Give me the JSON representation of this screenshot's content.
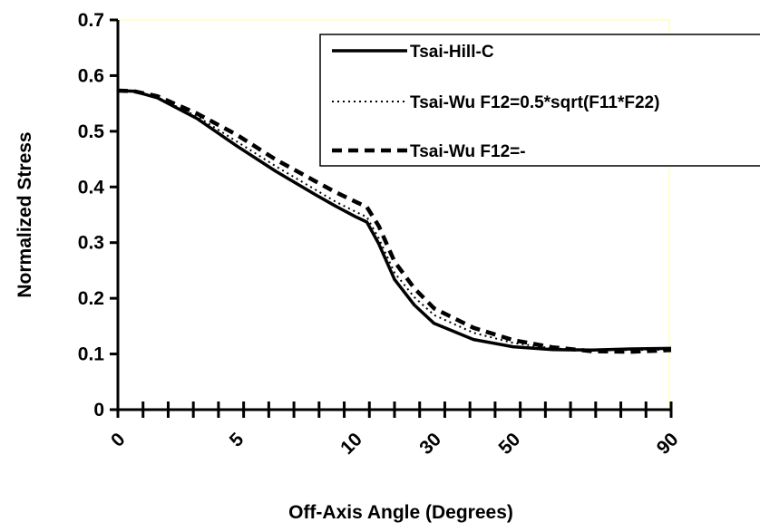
{
  "chart_data": {
    "type": "line",
    "title": "",
    "xlabel": "Off-Axis Angle (Degrees)",
    "ylabel": "Normalized Stress",
    "ylim": [
      0,
      0.7
    ],
    "y_ticks": [
      "0",
      "0.1",
      "0.2",
      "0.3",
      "0.4",
      "0.5",
      "0.6",
      "0.7"
    ],
    "x_tick_labels": [
      "0",
      "5",
      "10",
      "30",
      "50",
      "90"
    ],
    "x_tick_label_positions": [
      0,
      3,
      6,
      8,
      10,
      14
    ],
    "x_index_range": [
      0,
      14
    ],
    "x_minor_tick_count": 22,
    "grid": false,
    "legend_position": "top-right",
    "series": [
      {
        "name": "Tsai-Hill-C",
        "style": "solid",
        "color": "#000000",
        "points": [
          [
            0,
            0.573
          ],
          [
            0.4,
            0.572
          ],
          [
            1,
            0.56
          ],
          [
            2,
            0.523
          ],
          [
            3,
            0.474
          ],
          [
            4,
            0.428
          ],
          [
            5,
            0.386
          ],
          [
            5.5,
            0.366
          ],
          [
            6,
            0.347
          ],
          [
            6.3,
            0.337
          ],
          [
            6.6,
            0.298
          ],
          [
            7,
            0.234
          ],
          [
            7.5,
            0.188
          ],
          [
            8,
            0.155
          ],
          [
            9,
            0.126
          ],
          [
            10,
            0.113
          ],
          [
            11,
            0.108
          ],
          [
            12,
            0.107
          ],
          [
            13,
            0.109
          ],
          [
            14,
            0.11
          ]
        ]
      },
      {
        "name": "Tsai-Wu F12=0.5*sqrt(F11*F22)",
        "style": "dotted",
        "color": "#000000",
        "points": [
          [
            0,
            0.573
          ],
          [
            0.4,
            0.572
          ],
          [
            1,
            0.561
          ],
          [
            2,
            0.527
          ],
          [
            3,
            0.482
          ],
          [
            4,
            0.437
          ],
          [
            5,
            0.395
          ],
          [
            5.5,
            0.374
          ],
          [
            6,
            0.356
          ],
          [
            6.3,
            0.346
          ],
          [
            6.6,
            0.308
          ],
          [
            7,
            0.246
          ],
          [
            7.5,
            0.202
          ],
          [
            8,
            0.17
          ],
          [
            9,
            0.138
          ],
          [
            10,
            0.12
          ],
          [
            11,
            0.11
          ],
          [
            12,
            0.107
          ],
          [
            13,
            0.107
          ],
          [
            14,
            0.108
          ]
        ]
      },
      {
        "name": "Tsai-Wu F12=-",
        "style": "dashed",
        "color": "#000000",
        "points": [
          [
            0,
            0.573
          ],
          [
            0.4,
            0.572
          ],
          [
            1,
            0.563
          ],
          [
            2,
            0.532
          ],
          [
            3,
            0.494
          ],
          [
            4,
            0.449
          ],
          [
            5,
            0.41
          ],
          [
            5.5,
            0.391
          ],
          [
            6,
            0.374
          ],
          [
            6.3,
            0.364
          ],
          [
            6.6,
            0.33
          ],
          [
            7,
            0.266
          ],
          [
            7.5,
            0.218
          ],
          [
            8,
            0.182
          ],
          [
            9,
            0.147
          ],
          [
            10,
            0.125
          ],
          [
            11,
            0.112
          ],
          [
            12,
            0.105
          ],
          [
            13,
            0.104
          ],
          [
            14,
            0.107
          ]
        ]
      }
    ]
  }
}
